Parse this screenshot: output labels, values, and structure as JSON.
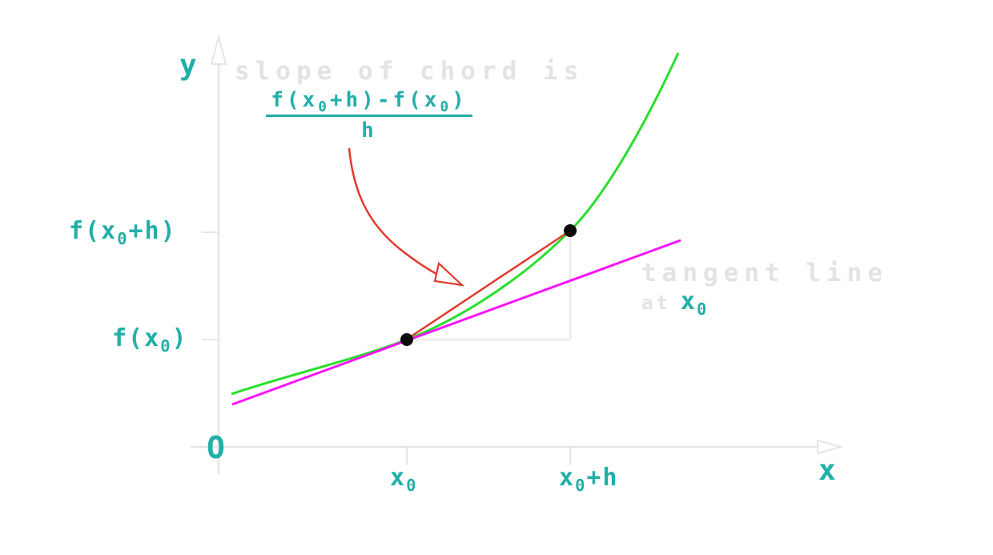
{
  "figure": {
    "captions": {
      "slope_of_chord": "slope of chord is",
      "tangent_line": "tangent line",
      "at_word": "at"
    },
    "formula": {
      "numerator": [
        {
          "t": "f(x"
        },
        {
          "s": "0"
        },
        {
          "t": "+h)-f(x"
        },
        {
          "s": "0"
        },
        {
          "t": ")"
        }
      ],
      "denominator": "h"
    },
    "axis": {
      "y_label": "y",
      "x_label": "x",
      "origin_label": "O",
      "y_tick_upper_label": [
        {
          "t": "f(x"
        },
        {
          "s": "0"
        },
        {
          "t": "+h)"
        }
      ],
      "y_tick_lower_label": [
        {
          "t": "f(x"
        },
        {
          "s": "0"
        },
        {
          "t": ")"
        }
      ],
      "x_tick_left_label": [
        {
          "t": "x"
        },
        {
          "s": "0"
        }
      ],
      "x_tick_right_label": [
        {
          "t": "x"
        },
        {
          "s": "0"
        },
        {
          "t": "+h"
        }
      ],
      "tangent_at_point_label": [
        {
          "t": "x"
        },
        {
          "s": "0"
        }
      ]
    },
    "colors": {
      "teal": "#22afa8",
      "gray_text": "#e3e3e3",
      "axis_gray": "#e6e6e6",
      "helper_gray": "#ececec",
      "curve_green": "#2ade2c",
      "tangent_magenta": "#fa12fa",
      "chord_red": "#e2392d",
      "point_black": "#0a0a0a"
    }
  }
}
